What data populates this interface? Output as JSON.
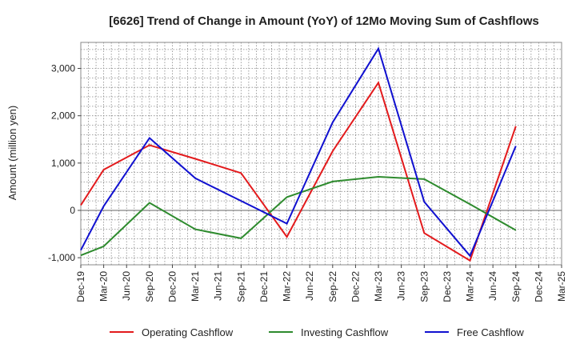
{
  "chart_data": {
    "type": "line",
    "title": "[6626]  Trend of Change in Amount (YoY) of 12Mo Moving Sum of Cashflows",
    "xlabel": "",
    "ylabel": "Amount (million yen)",
    "ylim": [
      -1150,
      3550
    ],
    "yticks": [
      -1000,
      0,
      1000,
      2000,
      3000
    ],
    "ytick_labels": [
      "-1,000",
      "0",
      "1,000",
      "2,000",
      "3,000"
    ],
    "categories": [
      "Dec-19",
      "Mar-20",
      "Jun-20",
      "Sep-20",
      "Dec-20",
      "Mar-21",
      "Jun-21",
      "Sep-21",
      "Dec-21",
      "Mar-22",
      "Jun-22",
      "Sep-22",
      "Dec-22",
      "Mar-23",
      "Jun-23",
      "Sep-23",
      "Dec-23",
      "Mar-24",
      "Jun-24",
      "Sep-24",
      "Dec-24",
      "Mar-25"
    ],
    "grid": true,
    "legend_position": "bottom",
    "series": [
      {
        "name": "Operating Cashflow",
        "color": "#e31a1c",
        "values": [
          110,
          860,
          null,
          1380,
          null,
          1090,
          null,
          790,
          null,
          -560,
          null,
          1250,
          null,
          2700,
          null,
          -480,
          null,
          -1060,
          null,
          1780,
          null,
          null
        ]
      },
      {
        "name": "Investing Cashflow",
        "color": "#2e8b2e",
        "values": [
          -950,
          -760,
          null,
          160,
          null,
          -400,
          null,
          -590,
          null,
          280,
          null,
          610,
          null,
          710,
          null,
          660,
          null,
          130,
          null,
          -420,
          null,
          null
        ]
      },
      {
        "name": "Free Cashflow",
        "color": "#1010d0",
        "values": [
          -840,
          90,
          null,
          1530,
          null,
          680,
          null,
          200,
          null,
          -280,
          null,
          1860,
          null,
          3420,
          null,
          180,
          null,
          -960,
          null,
          1360,
          null,
          null
        ]
      }
    ]
  }
}
